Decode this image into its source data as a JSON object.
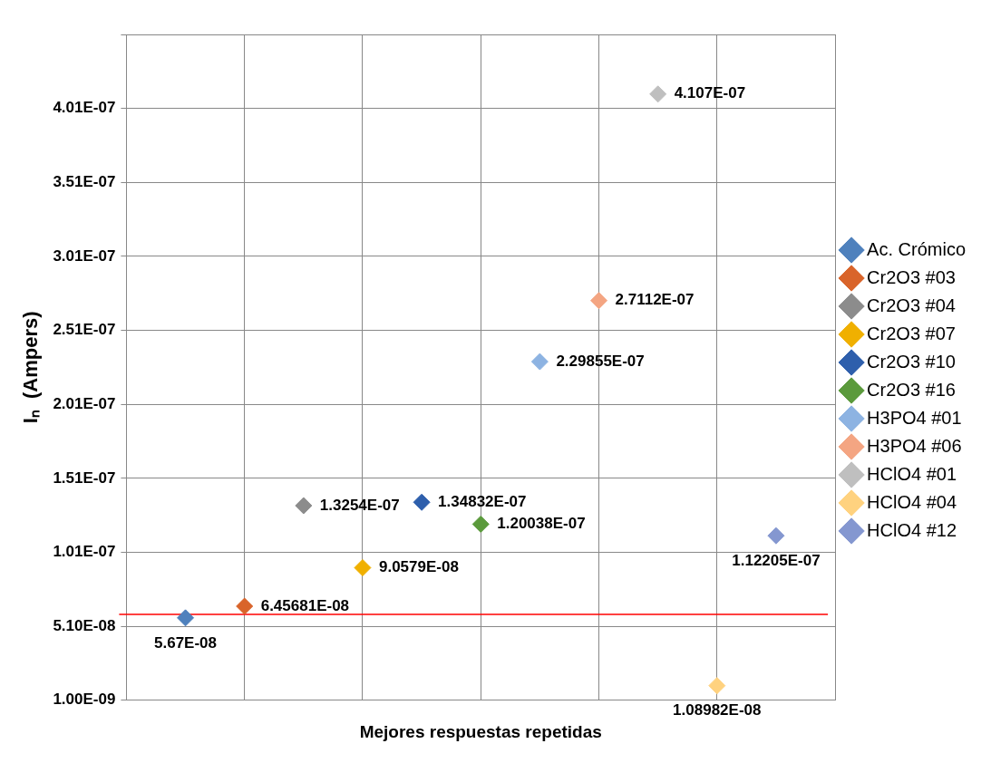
{
  "chart_data": {
    "type": "scatter",
    "xlabel": "Mejores respuestas repetidas",
    "ylabel": "Iₙ  (Ampers)",
    "categories": [
      null,
      null,
      null,
      null,
      null,
      null,
      null,
      null,
      null,
      null,
      null
    ],
    "ylim": [
      1e-09,
      4.51e-07
    ],
    "yticks": [
      {
        "value": 1e-09,
        "label": "1.00E-09"
      },
      {
        "value": 5.1e-08,
        "label": "5.10E-08"
      },
      {
        "value": 1.01e-07,
        "label": "1.01E-07"
      },
      {
        "value": 1.51e-07,
        "label": "1.51E-07"
      },
      {
        "value": 2.01e-07,
        "label": "2.01E-07"
      },
      {
        "value": 2.51e-07,
        "label": "2.51E-07"
      },
      {
        "value": 3.01e-07,
        "label": "3.01E-07"
      },
      {
        "value": 3.51e-07,
        "label": "3.51E-07"
      },
      {
        "value": 4.01e-07,
        "label": "4.01E-07"
      },
      {
        "value": 4.51e-07,
        "label": null
      }
    ],
    "grid": true,
    "legend": "right",
    "marker": "diamond",
    "ref_lines": [
      {
        "axis": "y",
        "value": 5.9e-08,
        "color": "#ff0000"
      }
    ],
    "series": [
      {
        "name": "Ac. Crómico",
        "color": "#4f81bd",
        "values": [
          5.67e-08,
          null,
          null,
          null,
          null,
          null,
          null,
          null,
          null,
          null,
          null
        ],
        "value_labels": [
          "5.67E-08",
          null,
          null,
          null,
          null,
          null,
          null,
          null,
          null,
          null,
          null
        ]
      },
      {
        "name": "Cr2O3 #03",
        "color": "#d9642a",
        "values": [
          null,
          6.45681e-08,
          null,
          null,
          null,
          null,
          null,
          null,
          null,
          null,
          null
        ],
        "value_labels": [
          null,
          "6.45681E-08",
          null,
          null,
          null,
          null,
          null,
          null,
          null,
          null,
          null
        ]
      },
      {
        "name": "Cr2O3 #04",
        "color": "#8c8c8c",
        "values": [
          null,
          null,
          1.3254e-07,
          null,
          null,
          null,
          null,
          null,
          null,
          null,
          null
        ],
        "value_labels": [
          null,
          null,
          "1.3254E-07",
          null,
          null,
          null,
          null,
          null,
          null,
          null,
          null
        ]
      },
      {
        "name": "Cr2O3 #07",
        "color": "#f0b000",
        "values": [
          null,
          null,
          null,
          9.0579e-08,
          null,
          null,
          null,
          null,
          null,
          null,
          null
        ],
        "value_labels": [
          null,
          null,
          null,
          "9.0579E-08",
          null,
          null,
          null,
          null,
          null,
          null,
          null
        ]
      },
      {
        "name": "Cr2O3 #10",
        "color": "#2e5fac",
        "values": [
          null,
          null,
          null,
          null,
          1.34832e-07,
          null,
          null,
          null,
          null,
          null,
          null
        ],
        "value_labels": [
          null,
          null,
          null,
          null,
          "1.34832E-07",
          null,
          null,
          null,
          null,
          null,
          null
        ]
      },
      {
        "name": "Cr2O3 #16",
        "color": "#5b9a3c",
        "values": [
          null,
          null,
          null,
          null,
          null,
          1.20038e-07,
          null,
          null,
          null,
          null,
          null
        ],
        "value_labels": [
          null,
          null,
          null,
          null,
          null,
          "1.20038E-07",
          null,
          null,
          null,
          null,
          null
        ]
      },
      {
        "name": "H3PO4 #01",
        "color": "#8db3e2",
        "values": [
          null,
          null,
          null,
          null,
          null,
          null,
          2.29855e-07,
          null,
          null,
          null,
          null
        ],
        "value_labels": [
          null,
          null,
          null,
          null,
          null,
          null,
          "2.29855E-07",
          null,
          null,
          null,
          null
        ]
      },
      {
        "name": "H3PO4 #06",
        "color": "#f4a582",
        "values": [
          null,
          null,
          null,
          null,
          null,
          null,
          null,
          2.7112e-07,
          null,
          null,
          null
        ],
        "value_labels": [
          null,
          null,
          null,
          null,
          null,
          null,
          null,
          "2.7112E-07",
          null,
          null,
          null
        ]
      },
      {
        "name": "HClO4 #01",
        "color": "#bfbfbf",
        "values": [
          null,
          null,
          null,
          null,
          null,
          null,
          null,
          null,
          4.107e-07,
          null,
          null
        ],
        "value_labels": [
          null,
          null,
          null,
          null,
          null,
          null,
          null,
          null,
          "4.107E-07",
          null,
          null
        ]
      },
      {
        "name": "HClO4 #04",
        "color": "#ffd27f",
        "values": [
          null,
          null,
          null,
          null,
          null,
          null,
          null,
          null,
          null,
          1.08982e-08,
          null
        ],
        "value_labels": [
          null,
          null,
          null,
          null,
          null,
          null,
          null,
          null,
          null,
          "1.08982E-08",
          null
        ]
      },
      {
        "name": "HClO4 #12",
        "color": "#8497d0",
        "values": [
          null,
          null,
          null,
          null,
          null,
          null,
          null,
          null,
          null,
          null,
          1.12205e-07
        ],
        "value_labels": [
          null,
          null,
          null,
          null,
          null,
          null,
          null,
          null,
          null,
          null,
          "1.12205E-07"
        ]
      }
    ]
  }
}
